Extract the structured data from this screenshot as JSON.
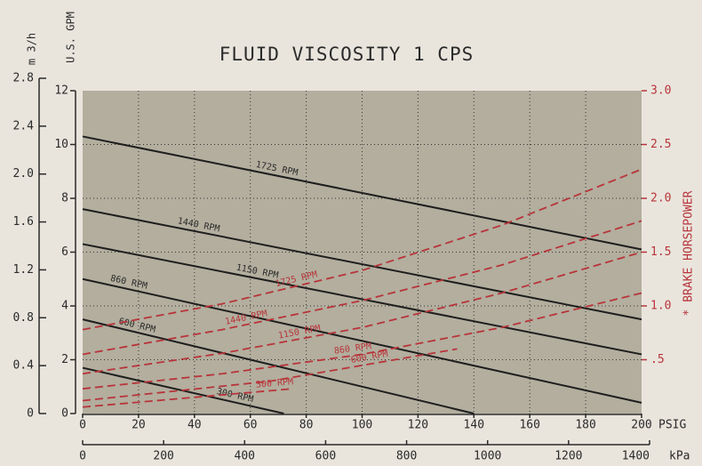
{
  "chart_data": {
    "type": "line",
    "title": "FLUID VISCOSITY 1 CPS",
    "y_label": "U.S. GPM",
    "y3_label": "m 3/h",
    "y2_label": "* BRAKE HORSEPOWER",
    "x_label": "PSIG",
    "x2_label": "kPa",
    "xlim": [
      0,
      200
    ],
    "xticks": [
      0,
      20,
      40,
      60,
      80,
      100,
      120,
      140,
      160,
      180,
      200
    ],
    "x2lim": [
      0,
      1400
    ],
    "x2ticks": [
      0,
      200,
      400,
      600,
      800,
      1000,
      1200,
      1400
    ],
    "ylim": [
      0,
      12
    ],
    "yticks": [
      0,
      2,
      4,
      6,
      8,
      10,
      12
    ],
    "y2lim": [
      0,
      3
    ],
    "y2ticks": [
      {
        "value": 0.5,
        "label": ".5"
      },
      {
        "value": 1,
        "label": "1.0"
      },
      1.5,
      {
        "value": 2,
        "label": "2.0"
      },
      2.5,
      {
        "value": 3,
        "label": "3.0"
      }
    ],
    "y3lim": [
      0,
      2.8
    ],
    "y3ticks": [
      0,
      0.4,
      0.8,
      1.2,
      1.6,
      {
        "value": 2,
        "label": "2.0"
      },
      2.4,
      2.8
    ],
    "grid": true,
    "series": [
      {
        "name": "1725 RPM",
        "color": "#1e1e1e",
        "x": [
          0,
          200
        ],
        "values": [
          10.3,
          6.1
        ]
      },
      {
        "name": "1440 RPM",
        "color": "#1e1e1e",
        "x": [
          0,
          200
        ],
        "values": [
          7.6,
          3.5
        ]
      },
      {
        "name": "1150 RPM",
        "color": "#1e1e1e",
        "x": [
          0,
          200
        ],
        "values": [
          6.3,
          2.2
        ]
      },
      {
        "name": "860 RPM",
        "color": "#1e1e1e",
        "x": [
          0,
          200
        ],
        "values": [
          5.0,
          0.4
        ]
      },
      {
        "name": "600 RPM",
        "color": "#1e1e1e",
        "x": [
          0,
          140
        ],
        "values": [
          3.5,
          0
        ]
      },
      {
        "name": "300 RPM",
        "color": "#1e1e1e",
        "x": [
          0,
          72
        ],
        "values": [
          1.7,
          0
        ]
      },
      {
        "name": "1725 RPM",
        "color": "#b8343a",
        "axis": "y2",
        "dashed": true,
        "x": [
          0,
          50,
          100,
          150,
          200
        ],
        "values": [
          0.78,
          1.02,
          1.33,
          1.75,
          2.27
        ]
      },
      {
        "name": "1440 RPM",
        "color": "#b8343a",
        "axis": "y2",
        "dashed": true,
        "x": [
          0,
          50,
          100,
          150,
          200
        ],
        "values": [
          0.55,
          0.78,
          1.05,
          1.38,
          1.79
        ]
      },
      {
        "name": "1150 RPM",
        "color": "#b8343a",
        "axis": "y2",
        "dashed": true,
        "x": [
          0,
          50,
          100,
          150,
          200
        ],
        "values": [
          0.37,
          0.56,
          0.8,
          1.12,
          1.5
        ]
      },
      {
        "name": "860 RPM",
        "color": "#b8343a",
        "axis": "y2",
        "dashed": true,
        "x": [
          0,
          50,
          100,
          150,
          200
        ],
        "values": [
          0.23,
          0.37,
          0.55,
          0.8,
          1.12
        ]
      },
      {
        "name": "600 RPM",
        "color": "#b8343a",
        "axis": "y2",
        "dashed": true,
        "x": [
          0,
          67,
          134
        ],
        "values": [
          0.12,
          0.3,
          0.6
        ]
      },
      {
        "name": "300 RPM",
        "color": "#b8343a",
        "axis": "y2",
        "dashed": true,
        "x": [
          0,
          75
        ],
        "values": [
          0.06,
          0.23
        ]
      }
    ]
  }
}
